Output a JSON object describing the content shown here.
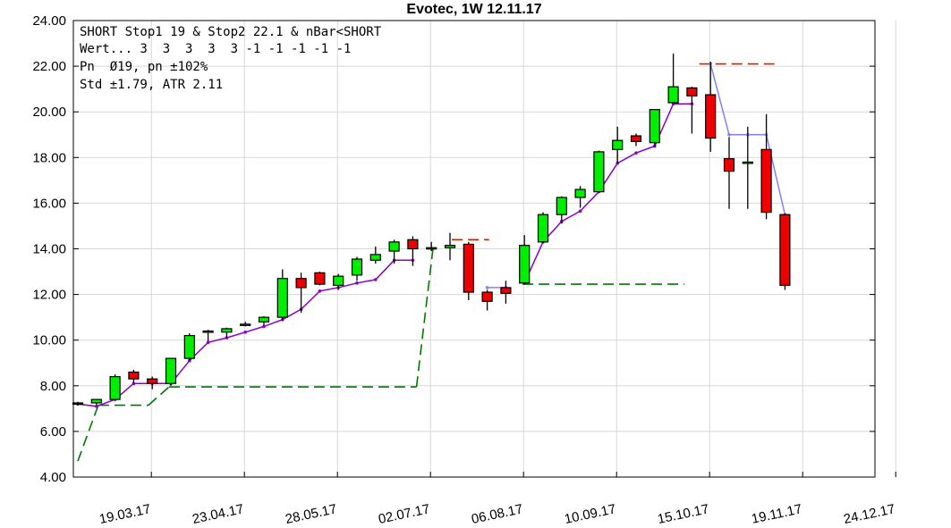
{
  "chart_data": {
    "type": "candlestick",
    "title": "Evotec, 1W 12.11.17",
    "annotations": [
      "SHORT Stop1 19 & Stop2 22.1 & nBar<SHORT",
      "Wert... 3  3  3  3  3 -1 -1 -1 -1 -1",
      "Pn  Ø19, pn ±102%",
      "Std ±1.79, ATR 2.11"
    ],
    "ylim": [
      4,
      24
    ],
    "yticks": [
      "4.00",
      "6.00",
      "8.00",
      "10.00",
      "12.00",
      "14.00",
      "16.00",
      "18.00",
      "20.00",
      "22.00",
      "24.00"
    ],
    "xtick_labels": [
      "19.03.17",
      "23.04.17",
      "28.05.17",
      "02.07.17",
      "06.08.17",
      "10.09.17",
      "15.10.17",
      "19.11.17",
      "24.12.17"
    ],
    "grid": true,
    "candles": [
      {
        "o": 7.25,
        "h": 7.3,
        "l": 7.15,
        "c": 7.2
      },
      {
        "o": 7.25,
        "h": 7.4,
        "l": 7.15,
        "c": 7.4
      },
      {
        "o": 7.4,
        "h": 8.5,
        "l": 7.35,
        "c": 8.4
      },
      {
        "o": 8.6,
        "h": 8.7,
        "l": 8.1,
        "c": 8.3
      },
      {
        "o": 8.3,
        "h": 8.4,
        "l": 7.85,
        "c": 8.1
      },
      {
        "o": 8.1,
        "h": 9.2,
        "l": 8.0,
        "c": 9.2
      },
      {
        "o": 9.2,
        "h": 10.3,
        "l": 9.1,
        "c": 10.2
      },
      {
        "o": 10.4,
        "h": 10.45,
        "l": 9.95,
        "c": 10.4
      },
      {
        "o": 10.35,
        "h": 10.55,
        "l": 10.1,
        "c": 10.5
      },
      {
        "o": 10.7,
        "h": 10.8,
        "l": 10.6,
        "c": 10.7
      },
      {
        "o": 10.8,
        "h": 11.05,
        "l": 10.65,
        "c": 11.0
      },
      {
        "o": 11.0,
        "h": 13.1,
        "l": 10.85,
        "c": 12.7
      },
      {
        "o": 12.7,
        "h": 12.95,
        "l": 11.2,
        "c": 12.3
      },
      {
        "o": 12.95,
        "h": 13.0,
        "l": 12.4,
        "c": 12.45
      },
      {
        "o": 12.4,
        "h": 12.9,
        "l": 12.2,
        "c": 12.8
      },
      {
        "o": 12.85,
        "h": 13.65,
        "l": 12.6,
        "c": 13.55
      },
      {
        "o": 13.5,
        "h": 14.1,
        "l": 13.35,
        "c": 13.75
      },
      {
        "o": 13.9,
        "h": 14.4,
        "l": 13.35,
        "c": 14.3
      },
      {
        "o": 14.4,
        "h": 14.55,
        "l": 13.25,
        "c": 14.0
      },
      {
        "o": 14.05,
        "h": 14.3,
        "l": 13.9,
        "c": 14.05
      },
      {
        "o": 14.05,
        "h": 14.7,
        "l": 13.5,
        "c": 14.15
      },
      {
        "o": 14.2,
        "h": 14.3,
        "l": 11.75,
        "c": 12.1
      },
      {
        "o": 12.1,
        "h": 12.2,
        "l": 11.3,
        "c": 11.7
      },
      {
        "o": 12.3,
        "h": 12.6,
        "l": 11.6,
        "c": 12.05
      },
      {
        "o": 12.5,
        "h": 14.6,
        "l": 12.45,
        "c": 14.15
      },
      {
        "o": 14.3,
        "h": 15.6,
        "l": 14.25,
        "c": 15.5
      },
      {
        "o": 15.5,
        "h": 16.3,
        "l": 15.1,
        "c": 16.25
      },
      {
        "o": 16.25,
        "h": 16.75,
        "l": 15.8,
        "c": 16.6
      },
      {
        "o": 16.5,
        "h": 18.3,
        "l": 16.5,
        "c": 18.25
      },
      {
        "o": 18.35,
        "h": 19.35,
        "l": 17.75,
        "c": 18.75
      },
      {
        "o": 18.95,
        "h": 19.05,
        "l": 18.5,
        "c": 18.7
      },
      {
        "o": 18.65,
        "h": 20.1,
        "l": 18.45,
        "c": 20.1
      },
      {
        "o": 20.4,
        "h": 22.55,
        "l": 20.4,
        "c": 21.1
      },
      {
        "o": 21.05,
        "h": 21.1,
        "l": 19.05,
        "c": 20.7
      },
      {
        "o": 20.75,
        "h": 22.2,
        "l": 18.25,
        "c": 18.85
      },
      {
        "o": 17.95,
        "h": 18.9,
        "l": 15.75,
        "c": 17.4
      },
      {
        "o": 17.8,
        "h": 19.35,
        "l": 15.75,
        "c": 17.8
      },
      {
        "o": 18.35,
        "h": 19.9,
        "l": 15.3,
        "c": 15.6
      },
      {
        "o": 15.5,
        "h": 15.55,
        "l": 12.2,
        "c": 12.4
      }
    ],
    "trail_purple": [
      7.2,
      7.1,
      7.4,
      8.1,
      8.1,
      8.1,
      9.1,
      9.9,
      10.1,
      10.35,
      10.6,
      10.9,
      11.35,
      12.15,
      12.3,
      12.5,
      12.65,
      13.5,
      13.5,
      null,
      null,
      null,
      null,
      null,
      12.5,
      14.3,
      15.2,
      15.65,
      16.5,
      17.75,
      18.2,
      18.5,
      20.35,
      20.35
    ],
    "trail_blue": [
      null,
      null,
      null,
      null,
      null,
      null,
      null,
      null,
      null,
      null,
      null,
      null,
      null,
      null,
      null,
      null,
      null,
      null,
      null,
      null,
      null,
      null,
      12.3,
      12.3,
      null,
      null,
      null,
      null,
      null,
      null,
      null,
      null,
      null,
      null,
      22.1,
      19.0,
      19.0,
      19.0,
      15.5
    ],
    "stop_green": [
      {
        "x0": 0,
        "y0": 4.7,
        "x1": 1.1,
        "y1": 7.15
      },
      {
        "x0": 1.1,
        "y0": 7.15,
        "x1": 3.8,
        "y1": 7.15
      },
      {
        "x0": 3.8,
        "y0": 7.15,
        "x1": 4.9,
        "y1": 7.95
      },
      {
        "x0": 4.9,
        "y0": 7.95,
        "x1": 18.2,
        "y1": 7.95
      },
      {
        "x0": 18.2,
        "y0": 7.95,
        "x1": 19.1,
        "y1": 14.1
      },
      {
        "x0": 23.9,
        "y0": 12.45,
        "x1": 32.6,
        "y1": 12.45
      }
    ],
    "stop_red": [
      {
        "x0": 20.1,
        "y0": 14.4,
        "x1": 22.1,
        "y1": 14.4
      },
      {
        "x0": 33.4,
        "y0": 22.1,
        "x1": 37.6,
        "y1": 22.1
      }
    ],
    "colors": {
      "up": "#00ee00",
      "down": "#ee0000",
      "trail_purple": "#8a00c8",
      "trail_blue": "#8080ff",
      "stop_green": "#007700",
      "stop_red": "#cc2200",
      "grid": "#d7d7d7"
    }
  }
}
